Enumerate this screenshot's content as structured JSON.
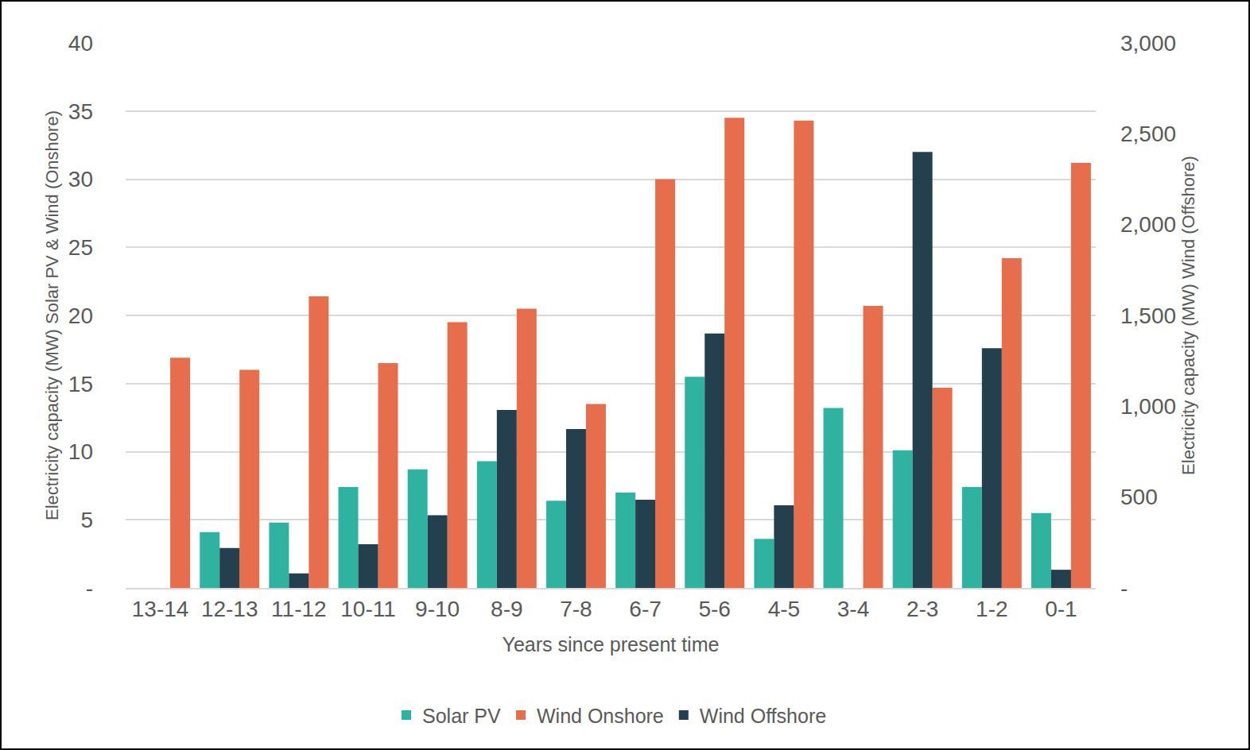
{
  "chart_data": {
    "type": "bar",
    "x_label": "Years since present time",
    "y_label": "Electricity capacity (MW) Solar PV & Wind (Onshore)",
    "y2_label": "Electricity capacity (MW) Wind (Offshore)",
    "categories": [
      "13-14",
      "12-13",
      "11-12",
      "10-11",
      "9-10",
      "8-9",
      "7-8",
      "6-7",
      "5-6",
      "4-5",
      "3-4",
      "2-3",
      "1-2",
      "0-1"
    ],
    "series": [
      {
        "name": "Solar PV",
        "color": "#2fb3a0",
        "values": [
          null,
          4.1,
          4.8,
          7.4,
          8.7,
          9.3,
          6.4,
          7.0,
          15.5,
          3.6,
          13.2,
          10.1,
          7.4,
          5.5
        ]
      },
      {
        "name": "Wind Onshore",
        "color": "#e66e4d",
        "values": [
          16.9,
          16.0,
          21.4,
          16.5,
          19.5,
          20.5,
          13.5,
          30.0,
          34.5,
          34.3,
          20.7,
          14.7,
          24.2,
          31.2
        ]
      },
      {
        "name": "Wind Offshore",
        "color": "#243f4e",
        "axis": "y2",
        "values": [
          null,
          220,
          80,
          240,
          400,
          980,
          875,
          485,
          1400,
          455,
          null,
          2400,
          1320,
          100
        ]
      }
    ],
    "ylim": [
      0,
      40
    ],
    "yticks": [
      {
        "value": 0,
        "label": "-"
      },
      5,
      10,
      15,
      20,
      25,
      30,
      35,
      40
    ],
    "y2lim": [
      0,
      3000
    ],
    "y2ticks": [
      {
        "value": 0,
        "label": "-"
      },
      500,
      {
        "value": 1000,
        "label": "1,000"
      },
      {
        "value": 1500,
        "label": "1,500"
      },
      {
        "value": 2000,
        "label": "2,000"
      },
      {
        "value": 2500,
        "label": "2,500"
      },
      {
        "value": 3000,
        "label": "3,000"
      }
    ],
    "grid": true,
    "legend": "bottom"
  }
}
